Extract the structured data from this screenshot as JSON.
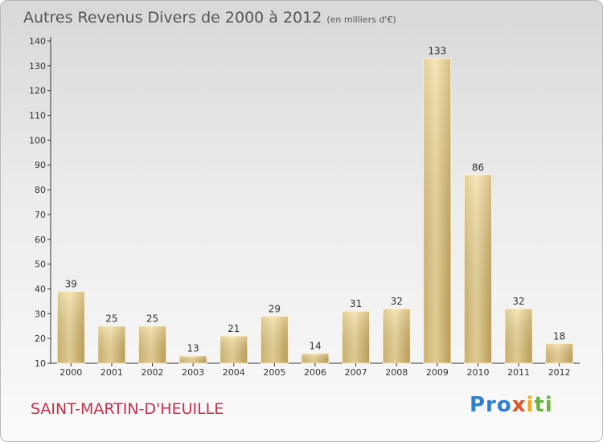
{
  "title": "Autres Revenus Divers de 2000 à 2012",
  "title_unit": "(en milliers d'€)",
  "place": "SAINT-MARTIN-D'HEUILLE",
  "logo": {
    "p1": "Pro",
    "p2": "x",
    "p3": "i",
    "p4": "ti"
  },
  "chart_data": {
    "type": "bar",
    "title": "Autres Revenus Divers de 2000 à 2012",
    "subtitle": "(en milliers d'€)",
    "categories": [
      "2000",
      "2001",
      "2002",
      "2003",
      "2004",
      "2005",
      "2006",
      "2007",
      "2008",
      "2009",
      "2010",
      "2011",
      "2012"
    ],
    "values": [
      39,
      25,
      25,
      13,
      21,
      29,
      14,
      31,
      32,
      133,
      86,
      32,
      18
    ],
    "ylim": [
      10,
      140
    ],
    "yticks": [
      10,
      20,
      30,
      40,
      50,
      60,
      70,
      80,
      90,
      100,
      110,
      120,
      130,
      140
    ],
    "grid": false,
    "bar_color": "#e6c97f"
  }
}
